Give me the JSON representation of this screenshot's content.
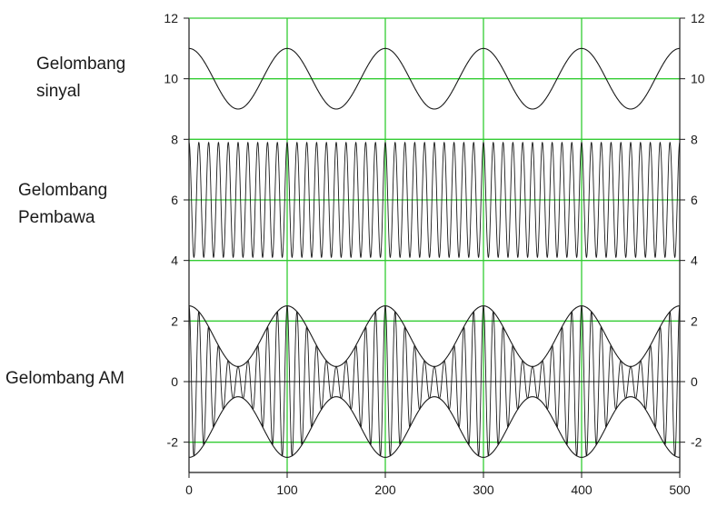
{
  "labels": {
    "signal": [
      "Gelombang",
      "sinyal"
    ],
    "carrier": [
      "Gelombang",
      "Pembawa"
    ],
    "am": [
      "Gelombang AM"
    ]
  },
  "chart_data": {
    "type": "line",
    "title": "",
    "xlabel": "",
    "ylabel": "",
    "xlim": [
      0,
      500
    ],
    "ylim": [
      -3,
      12
    ],
    "x_ticks": [
      0,
      100,
      200,
      300,
      400,
      500
    ],
    "y_ticks": [
      -2,
      0,
      2,
      4,
      6,
      8,
      10,
      12
    ],
    "y_ticks_right": [
      -2,
      0,
      2,
      4,
      6,
      8,
      10,
      12
    ],
    "grid": true,
    "grid_color": "#33cc33",
    "zero_line": true,
    "line_color": "#1a1a1a",
    "series": [
      {
        "role": "signal",
        "offset": 10,
        "amplitude": 1,
        "period": 100,
        "phase_deg": 90
      },
      {
        "role": "carrier",
        "offset": 6,
        "amplitude": 1.9,
        "period": 10,
        "phase_deg": 90
      },
      {
        "role": "am",
        "offset": 0,
        "amplitude_center": 1.5,
        "envelope_amplitude": 1,
        "period_envelope": 100,
        "period_carrier": 10,
        "phase_deg": 90
      }
    ]
  }
}
